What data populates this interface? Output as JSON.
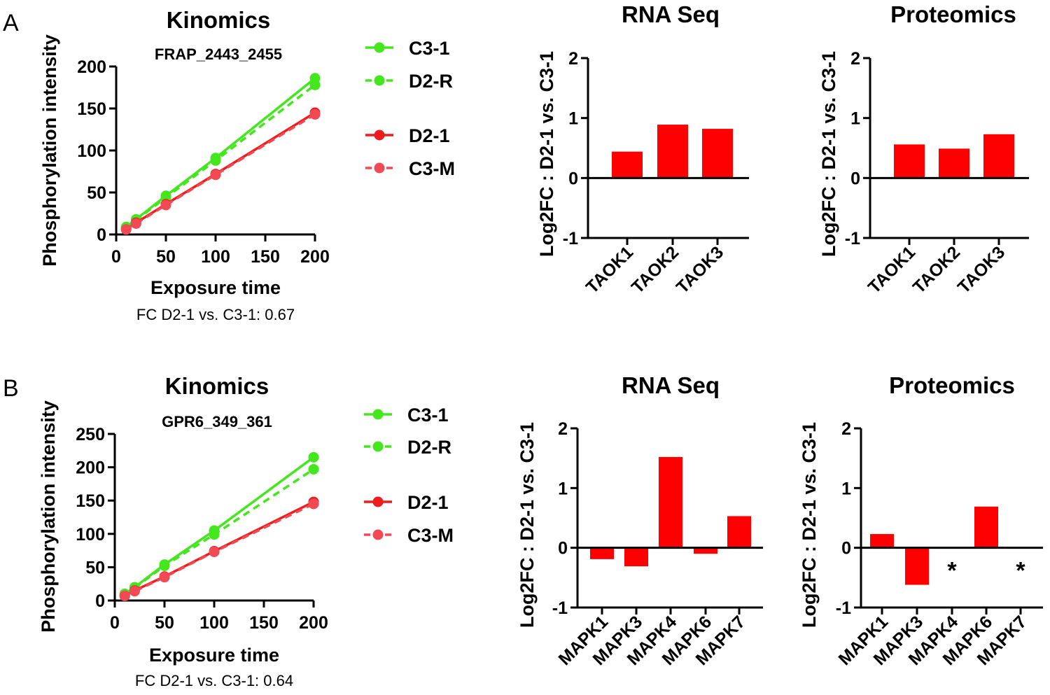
{
  "figure": {
    "panel_labels": [
      "A",
      "B"
    ]
  },
  "chart_data": [
    {
      "type": "line",
      "panel": "A",
      "title": "Kinomics",
      "subtitle": "FRAP_2443_2455",
      "xlabel": "Exposure time",
      "ylabel": "Phosphorylation intensity",
      "x": [
        10,
        20,
        50,
        100,
        200
      ],
      "xlim": [
        0,
        200
      ],
      "xticks": [
        0,
        50,
        100,
        150,
        200
      ],
      "ylim": [
        0,
        200
      ],
      "yticks": [
        0,
        50,
        100,
        150,
        200
      ],
      "legend": "right",
      "series": [
        {
          "name": "C3-1",
          "values": [
            9,
            18,
            46,
            91,
            186
          ],
          "color": "#44e61e",
          "dashed": false
        },
        {
          "name": "D2-R",
          "values": [
            8,
            17,
            44,
            88,
            178
          ],
          "color": "#44e61e",
          "dashed": true
        },
        {
          "name": "D2-1",
          "values": [
            6,
            14,
            36,
            72,
            145
          ],
          "color": "#ee1c1c",
          "dashed": false
        },
        {
          "name": "C3-M",
          "values": [
            6,
            13,
            35,
            71,
            143
          ],
          "color": "#f24a55",
          "dashed": true
        }
      ],
      "annotation": "FC D2-1 vs. C3-1: 0.67"
    },
    {
      "type": "bar",
      "panel": "A",
      "title": "RNA Seq",
      "ylabel": "Log2FC : D2-1 vs. C3-1",
      "categories": [
        "TAOK1",
        "TAOK2",
        "TAOK3"
      ],
      "values": [
        0.44,
        0.89,
        0.82
      ],
      "ylim": [
        -1,
        2
      ],
      "yticks": [
        -1,
        0,
        1,
        2
      ],
      "color": "#ff0000"
    },
    {
      "type": "bar",
      "panel": "A",
      "title": "Proteomics",
      "ylabel": "Log2FC : D2-1 vs. C3-1",
      "categories": [
        "TAOK1",
        "TAOK2",
        "TAOK3"
      ],
      "values": [
        0.56,
        0.49,
        0.73
      ],
      "ylim": [
        -1,
        2
      ],
      "yticks": [
        -1,
        0,
        1,
        2
      ],
      "color": "#ff0000"
    },
    {
      "type": "line",
      "panel": "B",
      "title": "Kinomics",
      "subtitle": "GPR6_349_361",
      "xlabel": "Exposure time",
      "ylabel": "Phosphorylation intensity",
      "x": [
        10,
        20,
        50,
        100,
        200
      ],
      "xlim": [
        0,
        200
      ],
      "xticks": [
        0,
        50,
        100,
        150,
        200
      ],
      "ylim": [
        0,
        250
      ],
      "yticks": [
        0,
        50,
        100,
        150,
        200,
        250
      ],
      "legend": "right",
      "series": [
        {
          "name": "C3-1",
          "values": [
            10,
            20,
            54,
            105,
            215
          ],
          "color": "#44e61e",
          "dashed": false
        },
        {
          "name": "D2-R",
          "values": [
            9,
            19,
            52,
            99,
            197
          ],
          "color": "#44e61e",
          "dashed": true
        },
        {
          "name": "D2-1",
          "values": [
            7,
            15,
            36,
            74,
            148
          ],
          "color": "#ee1c1c",
          "dashed": false
        },
        {
          "name": "C3-M",
          "values": [
            7,
            14,
            35,
            73,
            145
          ],
          "color": "#f24a55",
          "dashed": true
        }
      ],
      "annotation": "FC D2-1 vs. C3-1: 0.64"
    },
    {
      "type": "bar",
      "panel": "B",
      "title": "RNA Seq",
      "ylabel": "Log2FC : D2-1 vs. C3-1",
      "categories": [
        "MAPK1",
        "MAPK3",
        "MAPK4",
        "MAPK6",
        "MAPK7"
      ],
      "values": [
        -0.19,
        -0.31,
        1.52,
        -0.1,
        0.53
      ],
      "ylim": [
        -1,
        2
      ],
      "yticks": [
        -1,
        0,
        1,
        2
      ],
      "color": "#ff0000"
    },
    {
      "type": "bar",
      "panel": "B",
      "title": "Proteomics",
      "ylabel": "Log2FC : D2-1 vs. C3-1",
      "categories": [
        "MAPK1",
        "MAPK3",
        "MAPK4",
        "MAPK6",
        "MAPK7"
      ],
      "values": [
        0.23,
        -0.62,
        null,
        0.69,
        null
      ],
      "missing_marker": "*",
      "ylim": [
        -1,
        2
      ],
      "yticks": [
        -1,
        0,
        1,
        2
      ],
      "color": "#ff0000"
    }
  ]
}
